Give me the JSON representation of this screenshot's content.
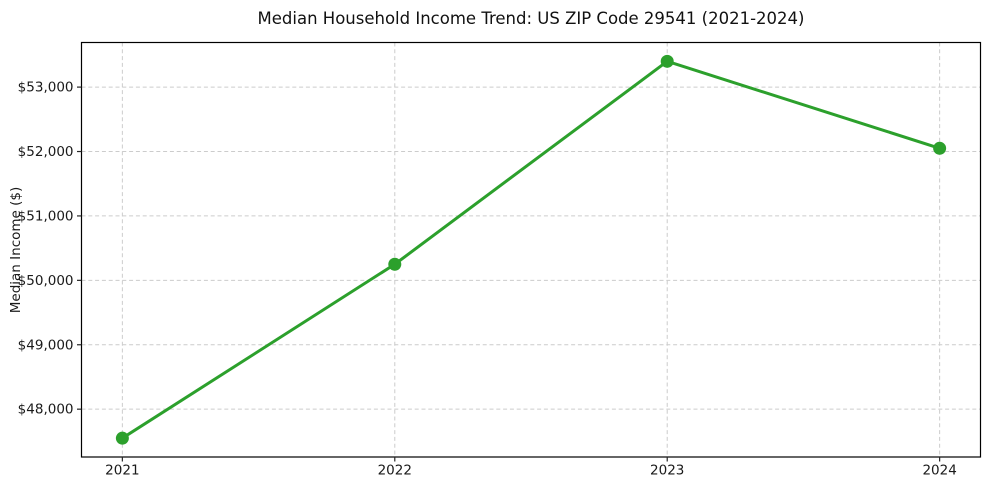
{
  "chart_data": {
    "type": "line",
    "title": "Median Household Income Trend: US ZIP Code 29541 (2021-2024)",
    "xlabel": "",
    "ylabel": "Median Income ($)",
    "x": [
      2021,
      2022,
      2023,
      2024
    ],
    "series": [
      {
        "name": "Median Household Income",
        "values": [
          47550,
          50250,
          53400,
          52050
        ],
        "color": "#2ca02c",
        "marker": "circle"
      }
    ],
    "xticks": [
      2021,
      2022,
      2023,
      2024
    ],
    "xtick_labels": [
      "2021",
      "2022",
      "2023",
      "2024"
    ],
    "yticks": [
      48000,
      49000,
      50000,
      51000,
      52000,
      53000
    ],
    "ytick_labels": [
      "$48,000",
      "$49,000",
      "$50,000",
      "$51,000",
      "$52,000",
      "$53,000"
    ],
    "xlim": [
      2020.85,
      2024.15
    ],
    "ylim": [
      47257.5,
      53692.5
    ],
    "grid": true,
    "grid_style": "dashed",
    "legend": false,
    "colors": {
      "line": "#2ca02c",
      "grid": "#cccccc",
      "spine": "#000000",
      "text": "#1a1a1a",
      "background": "#ffffff"
    }
  }
}
